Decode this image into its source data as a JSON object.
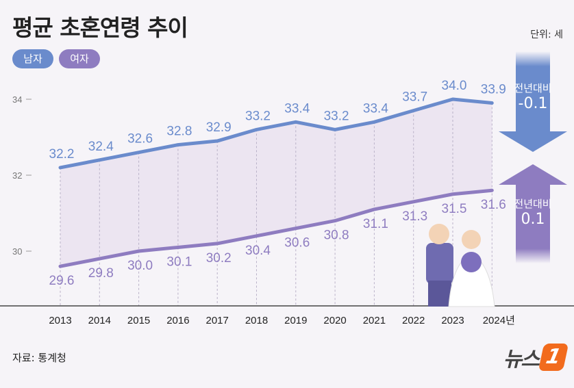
{
  "title": "평균 초혼연령 추이",
  "unit": "단위: 세",
  "source": "자료: 통계청",
  "logo": {
    "text": "뉴스",
    "mark": "1"
  },
  "colors": {
    "men": "#6a8bcc",
    "women": "#8e7cc0",
    "fill": "#ece5f1",
    "background": "#f6f4f8"
  },
  "annotations": {
    "men_change_label": "전년대비",
    "men_change_value": "-0.1",
    "women_change_label": "전년대비",
    "women_change_value": "0.1"
  },
  "chart_data": {
    "type": "line",
    "categories": [
      "2013",
      "2014",
      "2015",
      "2016",
      "2017",
      "2018",
      "2019",
      "2020",
      "2021",
      "2022",
      "2023",
      "2024년"
    ],
    "series": [
      {
        "name": "남자",
        "values": [
          32.2,
          32.4,
          32.6,
          32.8,
          32.9,
          33.2,
          33.4,
          33.2,
          33.4,
          33.7,
          34.0,
          33.9
        ]
      },
      {
        "name": "여자",
        "values": [
          29.6,
          29.8,
          30.0,
          30.1,
          30.2,
          30.4,
          30.6,
          30.8,
          31.1,
          31.3,
          31.5,
          31.6
        ]
      }
    ],
    "yticks": [
      30,
      32,
      34
    ],
    "ylim": [
      28.5,
      34.5
    ],
    "grid": "vertical dashed",
    "legend": "top-left"
  }
}
